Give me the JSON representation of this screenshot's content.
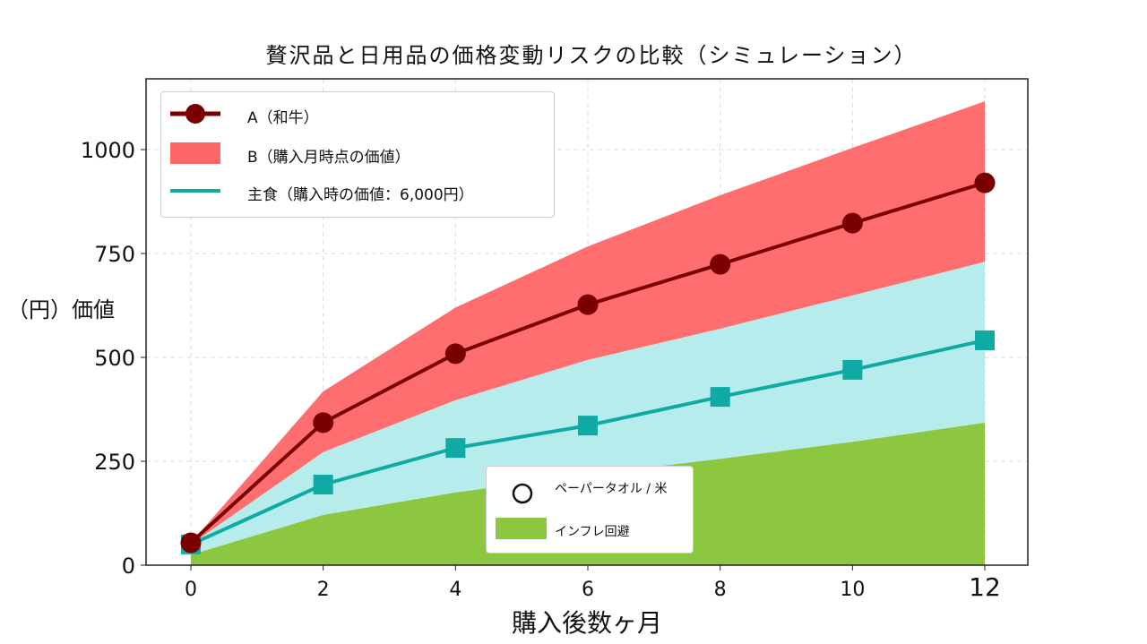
{
  "chart_data": {
    "type": "line",
    "title": "贅沢品と日用品の価格変動リスクの比較（シミュレーション）",
    "xlabel": "購入後数ヶ月",
    "ylabel": "（円）価値",
    "x": [
      0,
      2,
      4,
      6,
      8,
      10,
      12
    ],
    "xlim": [
      -0.7,
      12.6
    ],
    "ylim": [
      0,
      1170
    ],
    "xticks": [
      "0",
      "2",
      "4",
      "6",
      "8",
      "10",
      "12"
    ],
    "yticks": [
      "0",
      "250",
      "500",
      "750",
      "1000"
    ],
    "ytick_values": [
      0,
      250,
      500,
      750,
      1000
    ],
    "grid": true,
    "series": [
      {
        "name": "A（和牛）",
        "kind": "line-marker",
        "color": "#7a0000",
        "values": [
          54,
          343,
          509,
          627,
          724,
          823,
          920
        ]
      },
      {
        "name": "B（購入月時点の価値）",
        "kind": "band",
        "color": "#ff6666",
        "lower": [
          50,
          272,
          397,
          494,
          569,
          649,
          730
        ],
        "upper": [
          54,
          418,
          620,
          767,
          890,
          1004,
          1116
        ]
      },
      {
        "name": "主食（購入時の価値：6,000円）",
        "kind": "line-square",
        "color": "#10aaa5",
        "values": [
          50,
          194,
          282,
          336,
          405,
          470,
          541
        ]
      },
      {
        "name": "band-cyan",
        "kind": "band",
        "color": "#b6ecec",
        "lower": [
          25,
          121,
          175,
          218,
          256,
          297,
          343
        ],
        "upper": [
          50,
          272,
          397,
          494,
          569,
          649,
          730
        ]
      },
      {
        "name": "インフレ回避",
        "kind": "area",
        "color": "#8dc63f",
        "values": [
          25,
          121,
          175,
          218,
          256,
          297,
          343
        ]
      }
    ],
    "legend": {
      "placement": "top-left",
      "entries": [
        "A（和牛）",
        "B（購入月時点の価値）",
        "主食（購入時の価値：6,000円）"
      ]
    },
    "legend2": {
      "placement": "lower-center",
      "entries": [
        "ペーパータオル / 米",
        "インフレ回避"
      ]
    }
  }
}
